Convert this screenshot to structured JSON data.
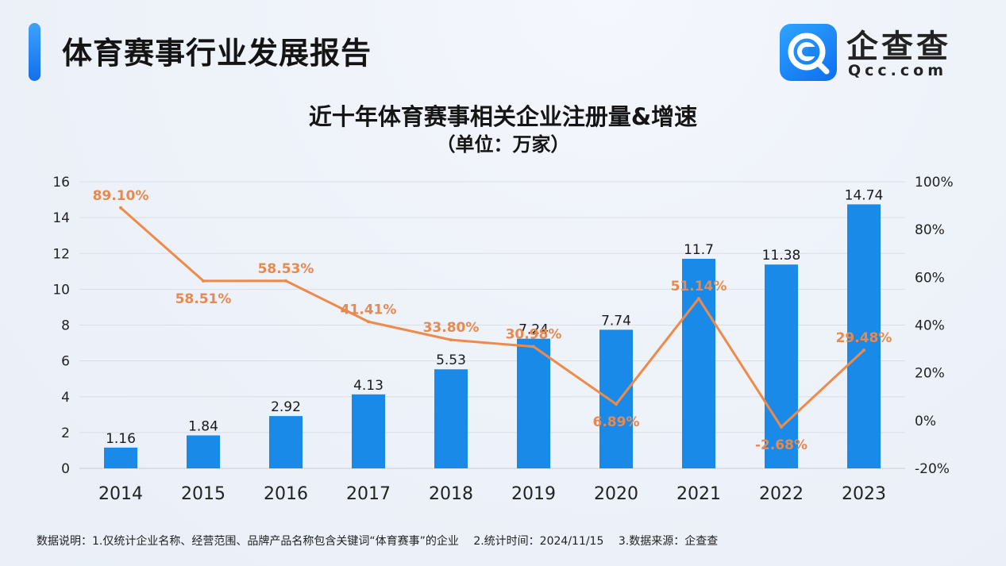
{
  "header": {
    "title": "体育赛事行业发展报告",
    "brand_name": "企查查",
    "brand_url": "Qcc.com",
    "brand_icon": "magnifier-q-icon",
    "accent_color": "#1a84ee"
  },
  "chart_data": {
    "type": "bar",
    "title": "近十年体育赛事相关企业注册量&增速",
    "subtitle": "（单位：万家）",
    "categories": [
      "2014",
      "2015",
      "2016",
      "2017",
      "2018",
      "2019",
      "2020",
      "2021",
      "2022",
      "2023"
    ],
    "series": [
      {
        "type": "bar",
        "axis": "left",
        "color": "#1a8ae8",
        "values": [
          1.16,
          1.84,
          2.92,
          4.13,
          5.53,
          7.24,
          7.74,
          11.7,
          11.38,
          14.74
        ],
        "labels": [
          "1.16",
          "1.84",
          "2.92",
          "4.13",
          "5.53",
          "7.24",
          "7.74",
          "11.7",
          "11.38",
          "14.74"
        ]
      },
      {
        "type": "line",
        "axis": "right",
        "color": "#ee8a4a",
        "values": [
          89.1,
          58.51,
          58.53,
          41.41,
          33.8,
          30.98,
          6.89,
          51.14,
          -2.68,
          29.48
        ],
        "labels": [
          "89.10%",
          "58.51%",
          "58.53%",
          "41.41%",
          "33.80%",
          "30.98%",
          "6.89%",
          "51.14%",
          "-2.68%",
          "29.48%"
        ]
      }
    ],
    "ylim": [
      0,
      16
    ],
    "yticks": [
      "0",
      "2",
      "4",
      "6",
      "8",
      "10",
      "12",
      "14",
      "16"
    ],
    "y2lim": [
      -20,
      100
    ],
    "y2ticks": [
      "-20%",
      "0%",
      "20%",
      "40%",
      "60%",
      "80%",
      "100%"
    ],
    "grid": true
  },
  "footnote": {
    "part1": "数据说明：1.仅统计企业名称、经营范围、品牌产品名称包含关键词“体育赛事”的企业",
    "part2": "2.统计时间：2024/11/15",
    "part3": "3.数据来源：企查查"
  }
}
